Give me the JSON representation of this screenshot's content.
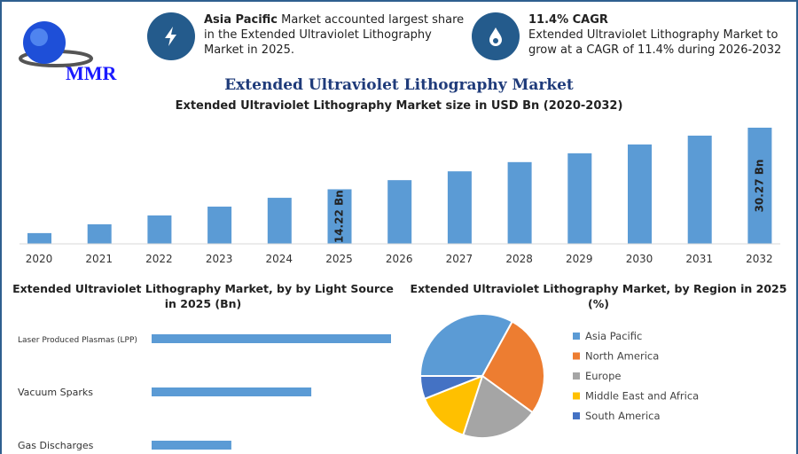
{
  "logo": {
    "text": "MMR"
  },
  "info1": {
    "bold": "Asia Pacific",
    "text": " Market accounted largest share in the Extended Ultraviolet Lithography Market in 2025.",
    "icon": "lightning-icon"
  },
  "info2": {
    "bold": "11.4% CAGR",
    "text": "Extended Ultraviolet Lithography Market to grow at a CAGR of 11.4% during 2026-2032",
    "icon": "flame-drop-icon"
  },
  "title": "Extended Ultraviolet Lithography Market",
  "chart_data": [
    {
      "type": "bar",
      "title": "Extended Ultraviolet Lithography Market size in USD Bn (2020-2032)",
      "categories": [
        "2020",
        "2021",
        "2022",
        "2023",
        "2024",
        "2025",
        "2026",
        "2027",
        "2028",
        "2029",
        "2030",
        "2031",
        "2032"
      ],
      "values": [
        2.8,
        5.1,
        7.4,
        9.7,
        12.0,
        14.22,
        16.6,
        18.9,
        21.3,
        23.6,
        25.9,
        28.2,
        30.27
      ],
      "data_labels": {
        "5": "14.22 Bn",
        "12": "30.27 Bn"
      },
      "color": "#5b9bd5",
      "grid": false
    },
    {
      "type": "bar",
      "orientation": "horizontal",
      "title": "Extended Ultraviolet Lithography Market, by by Light Source in 2025 (Bn)",
      "categories": [
        "Laser Produced Plasmas (LPP)",
        "Vacuum Sparks",
        "Gas Discharges"
      ],
      "values": [
        1.0,
        0.667,
        0.333
      ],
      "color": "#5b9bd5"
    },
    {
      "type": "pie",
      "title": "Extended Ultraviolet Lithography Market, by Region in 2025 (%)",
      "categories": [
        "Asia Pacific",
        "North America",
        "Europe",
        "Middle East and Africa",
        "South America"
      ],
      "values": [
        33,
        27,
        20,
        14,
        6
      ],
      "colors": [
        "#5b9bd5",
        "#ed7d31",
        "#a5a5a5",
        "#ffc000",
        "#4472c4"
      ],
      "legend": "right"
    }
  ]
}
